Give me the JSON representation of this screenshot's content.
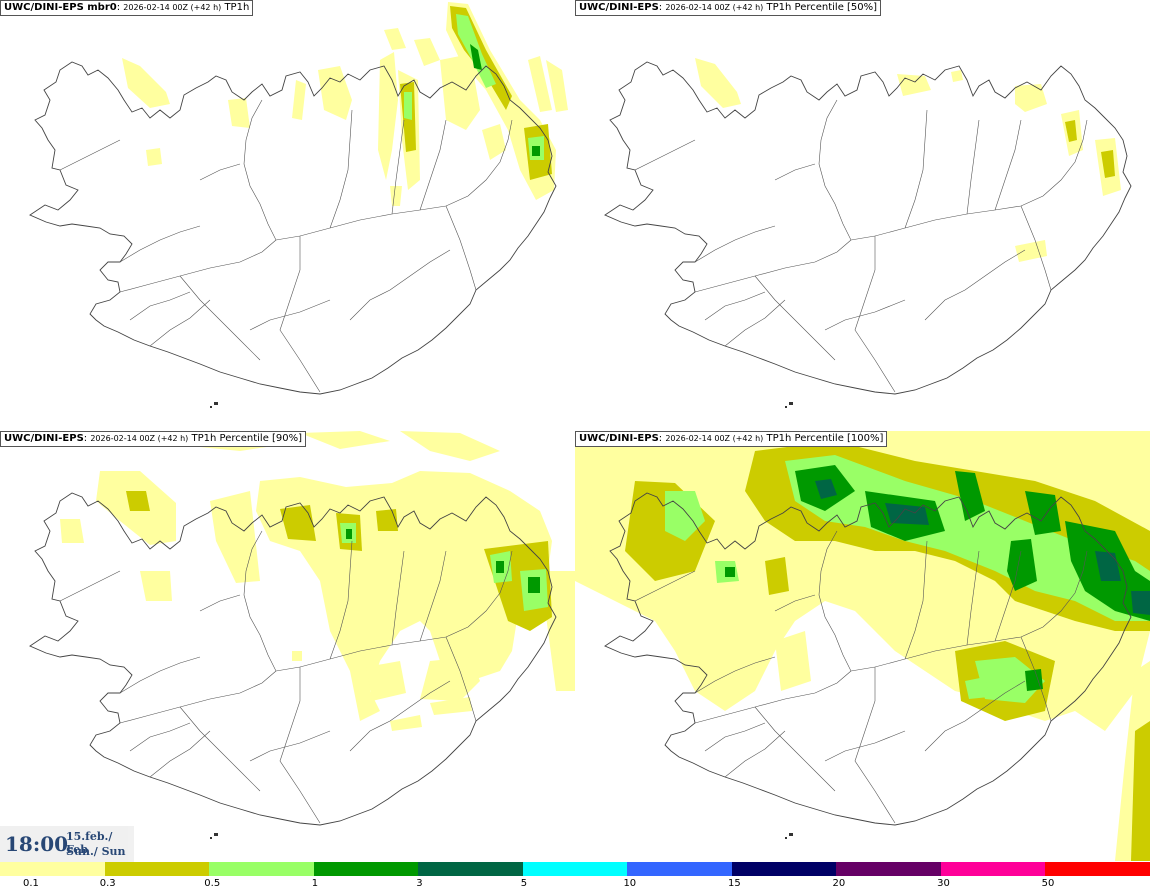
{
  "panels": [
    {
      "model": "UWC/DINI-EPS mbr0",
      "run": "2026-02-14 00Z (+42 h)",
      "field": "TP1h"
    },
    {
      "model": "UWC/DINI-EPS",
      "run": "2026-02-14 00Z (+42 h)",
      "field": "TP1h Percentile [50%]"
    },
    {
      "model": "UWC/DINI-EPS",
      "run": "2026-02-14 00Z (+42 h)",
      "field": "TP1h Percentile [90%]"
    },
    {
      "model": "UWC/DINI-EPS",
      "run": "2026-02-14 00Z (+42 h)",
      "field": "TP1h Percentile [100%]"
    }
  ],
  "valid_time": {
    "time": "18:00",
    "date": "15.feb./ Feb",
    "weekday": "Sun./ Sun"
  },
  "legend": {
    "labels": [
      "0.1",
      "0.3",
      "0.5",
      "1",
      "3",
      "5",
      "10",
      "15",
      "20",
      "30",
      "50"
    ],
    "colors": [
      "#ffff9f",
      "#cccc00",
      "#99ff66",
      "#009900",
      "#006644",
      "#00ffff",
      "#3366ff",
      "#000066",
      "#660066",
      "#ff0099",
      "#ff0000"
    ]
  },
  "shading_colors": {
    "light_yellow": "#ffff9f",
    "olive": "#cccc00",
    "light_green": "#99ff66",
    "green": "#009900",
    "dark_green": "#006644"
  }
}
